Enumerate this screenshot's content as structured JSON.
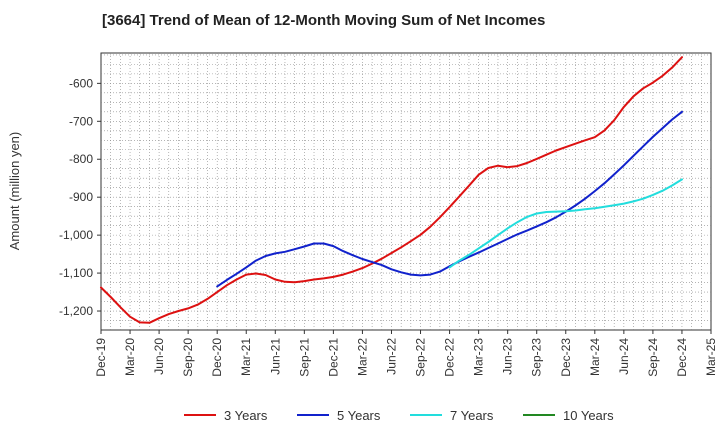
{
  "chart_data": {
    "type": "line",
    "title": "[3664]  Trend of Mean of 12-Month Moving Sum of Net Incomes",
    "ylabel": "Amount (million yen)",
    "xlabel": "",
    "ylim": [
      -1250,
      -520
    ],
    "yticks": [
      -1200,
      -1100,
      -1000,
      -900,
      -800,
      -700,
      -600
    ],
    "ytick_labels": [
      "-1,200",
      "-1,100",
      "-1,000",
      "-900",
      "-800",
      "-700",
      "-600"
    ],
    "x_start": "2019-12",
    "x_end": "2025-03",
    "xtick_labels": [
      "Dec-19",
      "Mar-20",
      "Jun-20",
      "Sep-20",
      "Dec-20",
      "Mar-21",
      "Jun-21",
      "Sep-21",
      "Dec-21",
      "Mar-22",
      "Jun-22",
      "Sep-22",
      "Dec-22",
      "Mar-23",
      "Jun-23",
      "Sep-23",
      "Dec-23",
      "Mar-24",
      "Jun-24",
      "Sep-24",
      "Dec-24",
      "Mar-25"
    ],
    "grid": true,
    "legend_position": "bottom",
    "series": [
      {
        "name": "3 Years",
        "color": "#dd1111",
        "x": [
          "2019-12",
          "2020-01",
          "2020-02",
          "2020-03",
          "2020-04",
          "2020-05",
          "2020-06",
          "2020-07",
          "2020-08",
          "2020-09",
          "2020-10",
          "2020-11",
          "2020-12",
          "2021-01",
          "2021-02",
          "2021-03",
          "2021-04",
          "2021-05",
          "2021-06",
          "2021-07",
          "2021-08",
          "2021-09",
          "2021-10",
          "2021-11",
          "2021-12",
          "2022-01",
          "2022-02",
          "2022-03",
          "2022-04",
          "2022-05",
          "2022-06",
          "2022-07",
          "2022-08",
          "2022-09",
          "2022-10",
          "2022-11",
          "2022-12",
          "2023-01",
          "2023-02",
          "2023-03",
          "2023-04",
          "2023-05",
          "2023-06",
          "2023-07",
          "2023-08",
          "2023-09",
          "2023-10",
          "2023-11",
          "2023-12",
          "2024-01",
          "2024-02",
          "2024-03",
          "2024-04",
          "2024-05",
          "2024-06",
          "2024-07",
          "2024-08",
          "2024-09",
          "2024-10",
          "2024-11",
          "2024-12"
        ],
        "values": [
          -1138,
          -1163,
          -1190,
          -1215,
          -1230,
          -1231,
          -1219,
          -1208,
          -1200,
          -1193,
          -1183,
          -1168,
          -1150,
          -1132,
          -1117,
          -1104,
          -1101,
          -1105,
          -1117,
          -1123,
          -1124,
          -1121,
          -1117,
          -1114,
          -1110,
          -1104,
          -1096,
          -1087,
          -1075,
          -1062,
          -1047,
          -1032,
          -1016,
          -999,
          -978,
          -953,
          -926,
          -898,
          -870,
          -841,
          -823,
          -817,
          -821,
          -818,
          -810,
          -799,
          -788,
          -777,
          -768,
          -759,
          -750,
          -742,
          -724,
          -697,
          -662,
          -634,
          -613,
          -598,
          -580,
          -558,
          -531
        ]
      },
      {
        "name": "5 Years",
        "color": "#1122cc",
        "x": [
          "2020-12",
          "2021-01",
          "2021-02",
          "2021-03",
          "2021-04",
          "2021-05",
          "2021-06",
          "2021-07",
          "2021-08",
          "2021-09",
          "2021-10",
          "2021-11",
          "2021-12",
          "2022-01",
          "2022-02",
          "2022-03",
          "2022-04",
          "2022-05",
          "2022-06",
          "2022-07",
          "2022-08",
          "2022-09",
          "2022-10",
          "2022-11",
          "2022-12",
          "2023-01",
          "2023-02",
          "2023-03",
          "2023-04",
          "2023-05",
          "2023-06",
          "2023-07",
          "2023-08",
          "2023-09",
          "2023-10",
          "2023-11",
          "2023-12",
          "2024-01",
          "2024-02",
          "2024-03",
          "2024-04",
          "2024-05",
          "2024-06",
          "2024-07",
          "2024-08",
          "2024-09",
          "2024-10",
          "2024-11",
          "2024-12"
        ],
        "values": [
          -1135,
          -1118,
          -1102,
          -1085,
          -1067,
          -1055,
          -1048,
          -1044,
          -1037,
          -1030,
          -1022,
          -1022,
          -1029,
          -1042,
          -1053,
          -1063,
          -1071,
          -1079,
          -1090,
          -1098,
          -1104,
          -1106,
          -1104,
          -1096,
          -1082,
          -1069,
          -1057,
          -1046,
          -1034,
          -1022,
          -1010,
          -998,
          -988,
          -977,
          -966,
          -953,
          -938,
          -922,
          -904,
          -884,
          -863,
          -840,
          -816,
          -791,
          -766,
          -741,
          -718,
          -695,
          -675
        ]
      },
      {
        "name": "7 Years",
        "color": "#22dddd",
        "x": [
          "2022-12",
          "2023-01",
          "2023-02",
          "2023-03",
          "2023-04",
          "2023-05",
          "2023-06",
          "2023-07",
          "2023-08",
          "2023-09",
          "2023-10",
          "2023-11",
          "2023-12",
          "2024-01",
          "2024-02",
          "2024-03",
          "2024-04",
          "2024-05",
          "2024-06",
          "2024-07",
          "2024-08",
          "2024-09",
          "2024-10",
          "2024-11",
          "2024-12"
        ],
        "values": [
          -1085,
          -1067,
          -1052,
          -1035,
          -1018,
          -1000,
          -982,
          -966,
          -952,
          -943,
          -939,
          -938,
          -937,
          -935,
          -932,
          -929,
          -925,
          -921,
          -917,
          -911,
          -904,
          -894,
          -883,
          -869,
          -853
        ]
      },
      {
        "name": "10 Years",
        "color": "#228822",
        "x": [],
        "values": []
      }
    ]
  }
}
